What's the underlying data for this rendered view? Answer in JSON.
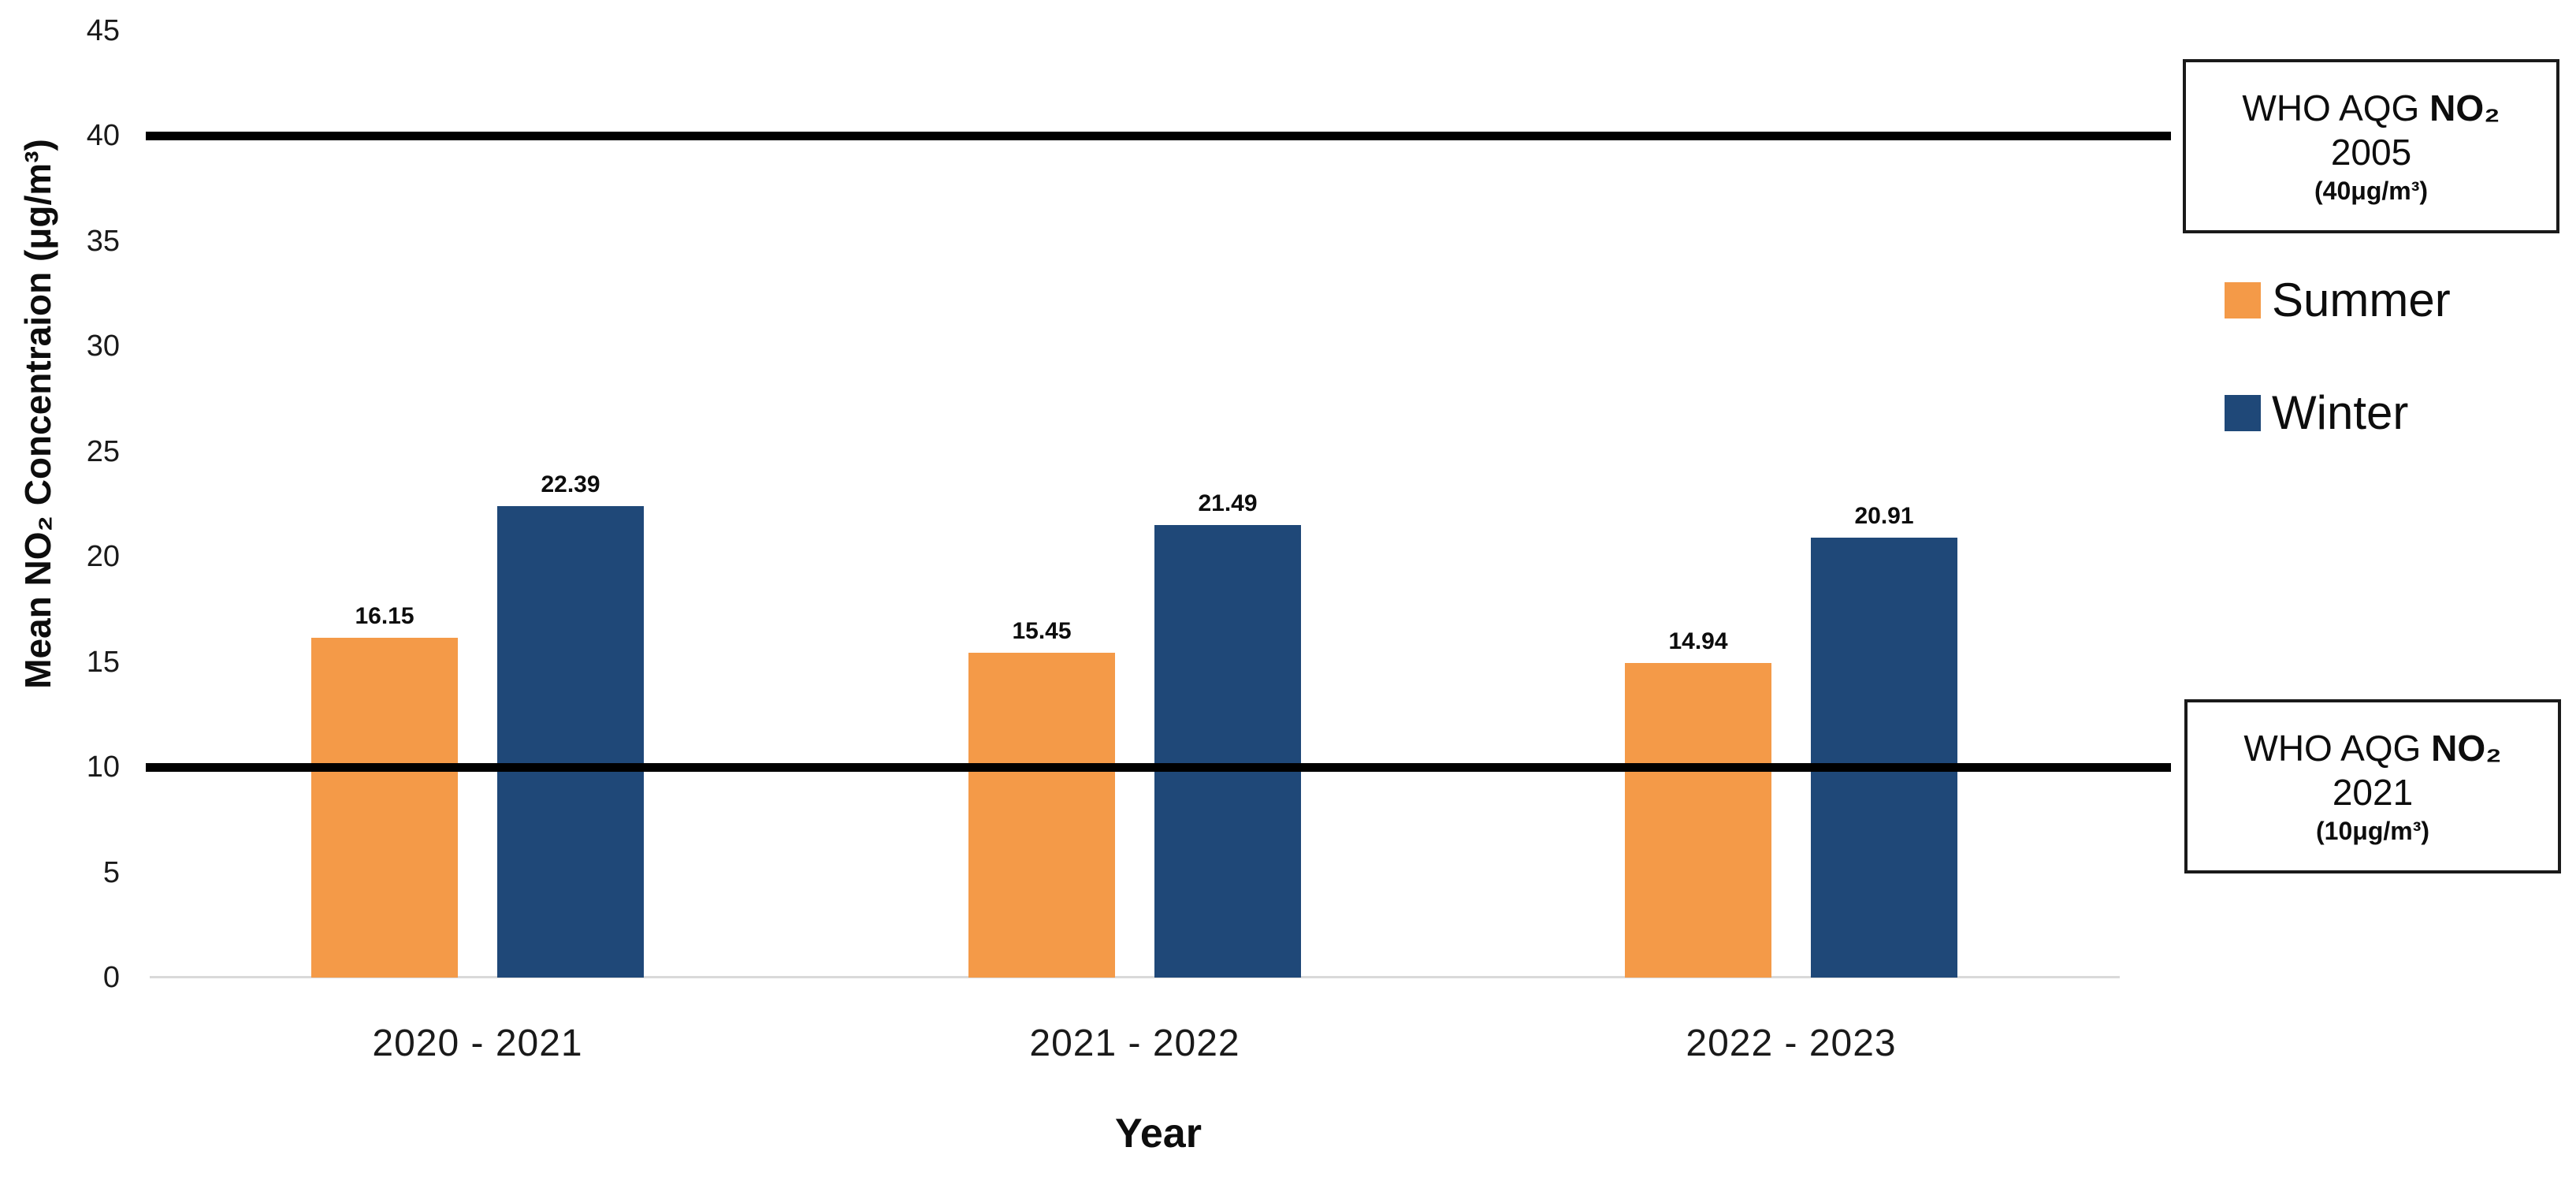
{
  "chart_data": {
    "type": "bar",
    "title": "",
    "categories": [
      "2020 - 2021",
      "2021 - 2022",
      "2022 - 2023"
    ],
    "series": [
      {
        "name": "Summer",
        "color": "#F49A48",
        "values": [
          16.15,
          15.45,
          14.94
        ]
      },
      {
        "name": "Winter",
        "color": "#1F4878",
        "values": [
          22.39,
          21.49,
          20.91
        ]
      }
    ],
    "value_labels": [
      [
        "16.15",
        "15.45",
        "14.94"
      ],
      [
        "22.39",
        "21.49",
        "20.91"
      ]
    ],
    "xlabel": "Year",
    "ylabel": "Mean NO₂ Concentraion (μg/m³)",
    "ylim": [
      0,
      45
    ],
    "yticks": [
      0,
      5,
      10,
      15,
      20,
      25,
      30,
      35,
      40,
      45
    ],
    "grid": false,
    "legend_position": "right",
    "reference_lines": [
      {
        "value": 40,
        "name": "who-aqg-2005-reference-line",
        "label": "WHO AQG NO₂ 2005 (40μg/m³)"
      },
      {
        "value": 10,
        "name": "who-aqg-2021-reference-line",
        "label": "WHO AQG NO₂ 2021 (10μg/m³)"
      }
    ]
  },
  "axes": {
    "y_title": "Mean NO₂ Concentraion (μg/m³)",
    "x_title": "Year"
  },
  "legend": {
    "items": [
      {
        "label": "Summer",
        "color": "#F49A48"
      },
      {
        "label": "Winter",
        "color": "#1F4878"
      }
    ]
  },
  "who_boxes": [
    {
      "prefix": "WHO AQG ",
      "chem": "NO₂",
      "year": "2005",
      "limit": "(40μg/m³)"
    },
    {
      "prefix": "WHO AQG ",
      "chem": "NO₂",
      "year": "2021",
      "limit": "(10μg/m³)"
    }
  ]
}
